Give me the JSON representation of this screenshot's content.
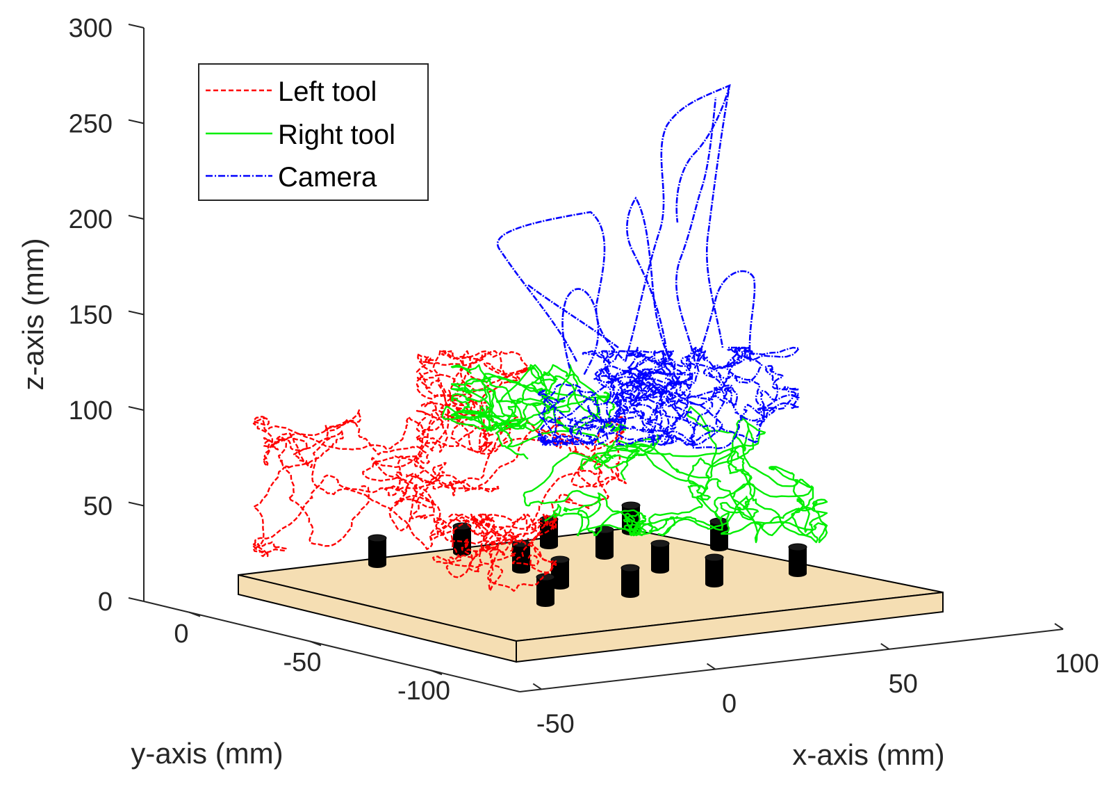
{
  "chart_data": {
    "type": "line",
    "projection": "3d",
    "title": "",
    "xlabel": "x-axis (mm)",
    "ylabel": "y-axis (mm)",
    "zlabel": "z-axis (mm)",
    "xlim": [
      -50,
      100
    ],
    "ylim": [
      -100,
      0
    ],
    "zlim": [
      0,
      300
    ],
    "x_ticks": [
      "-50",
      "0",
      "50",
      "100"
    ],
    "y_ticks": [
      "0",
      "-50",
      "-100"
    ],
    "z_ticks": [
      "0",
      "50",
      "100",
      "150",
      "200",
      "250",
      "300"
    ],
    "grid": false,
    "legend": {
      "placement": "top-left"
    },
    "series": [
      {
        "name": "Left tool",
        "color": "#ff0000",
        "style": "dashed",
        "approx_z_range": [
          20,
          130
        ]
      },
      {
        "name": "Right tool",
        "color": "#00ee00",
        "style": "solid",
        "approx_z_range": [
          25,
          115
        ]
      },
      {
        "name": "Camera",
        "color": "#0000ff",
        "style": "dashdot",
        "approx_z_range": [
          75,
          270
        ]
      }
    ],
    "scene": {
      "board_color": "#f5deb3",
      "peg_color": "#000000",
      "peg_count": 13
    }
  }
}
